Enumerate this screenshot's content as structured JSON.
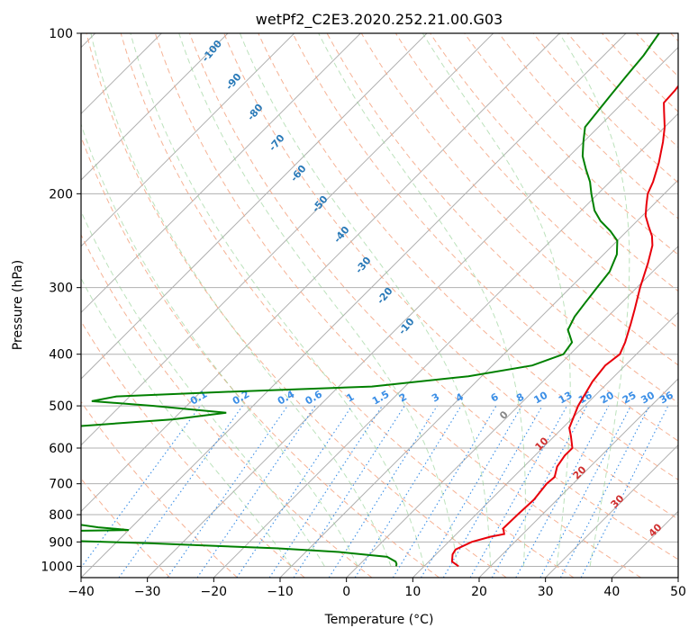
{
  "chart_data": {
    "type": "line",
    "title": "wetPf2_C2E3.2020.252.21.00.G03",
    "xlabel": "Temperature (°C)",
    "ylabel": "Pressure (hPa)",
    "xlim": [
      -40,
      50
    ],
    "ylim": [
      1050,
      100
    ],
    "y_scale": "log",
    "x_ticks": [
      -40,
      -30,
      -20,
      -10,
      0,
      10,
      20,
      30,
      40,
      50
    ],
    "y_ticks": [
      100,
      200,
      300,
      400,
      500,
      600,
      700,
      800,
      900,
      1000
    ],
    "grid": true,
    "skew_per_log_decade": 45,
    "theta_labels": [
      "-100",
      "-90",
      "-80",
      "-70",
      "-60",
      "-50",
      "-40",
      "-30",
      "-20",
      "-10"
    ],
    "mixing_ratio_labels": [
      "0.1",
      "0.2",
      "0.4",
      "0.6",
      "1",
      "1.5",
      "2",
      "3",
      "4",
      "6",
      "8",
      "10",
      "13",
      "16",
      "20",
      "25",
      "30",
      "36"
    ],
    "isotherm_labels": [
      "0",
      "10",
      "20",
      "30",
      "40"
    ],
    "series": [
      {
        "name": "Temperature",
        "color": "#e8000b",
        "points": [
          [
            1000,
            15.2
          ],
          [
            980,
            13.5
          ],
          [
            950,
            12.5
          ],
          [
            930,
            12.2
          ],
          [
            900,
            13.5
          ],
          [
            880,
            15.5
          ],
          [
            870,
            17.2
          ],
          [
            855,
            16.5
          ],
          [
            850,
            16.2
          ],
          [
            800,
            16.3
          ],
          [
            750,
            16.5
          ],
          [
            700,
            16.0
          ],
          [
            680,
            16.2
          ],
          [
            650,
            15.0
          ],
          [
            620,
            14.5
          ],
          [
            600,
            14.5
          ],
          [
            570,
            12.5
          ],
          [
            550,
            11.0
          ],
          [
            500,
            9.0
          ],
          [
            450,
            7.5
          ],
          [
            420,
            7.0
          ],
          [
            400,
            7.5
          ],
          [
            380,
            6.5
          ],
          [
            350,
            4.5
          ],
          [
            330,
            3.0
          ],
          [
            300,
            0.5
          ],
          [
            270,
            -2.0
          ],
          [
            250,
            -4.0
          ],
          [
            240,
            -5.5
          ],
          [
            230,
            -7.5
          ],
          [
            220,
            -9.5
          ],
          [
            210,
            -11.0
          ],
          [
            200,
            -12.5
          ],
          [
            190,
            -13.5
          ],
          [
            175,
            -15.5
          ],
          [
            160,
            -18.0
          ],
          [
            150,
            -20.0
          ],
          [
            140,
            -22.5
          ],
          [
            135,
            -23.8
          ],
          [
            128,
            -24.0
          ],
          [
            120,
            -24.5
          ],
          [
            110,
            -25.0
          ],
          [
            100,
            -26.0
          ]
        ]
      },
      {
        "name": "Dewpoint",
        "color": "#008000",
        "points": [
          [
            1000,
            5.8
          ],
          [
            990,
            5.5
          ],
          [
            980,
            5.0
          ],
          [
            960,
            3.0
          ],
          [
            940,
            -5.0
          ],
          [
            925,
            -15.0
          ],
          [
            915,
            -25.0
          ],
          [
            905,
            -35.0
          ],
          [
            895,
            -48.0
          ],
          [
            880,
            -60.0
          ],
          [
            870,
            -75.0
          ],
          [
            862,
            -58.0
          ],
          [
            855,
            -40.0
          ],
          [
            845,
            -45.0
          ],
          [
            830,
            -50.0
          ],
          [
            810,
            -55.0
          ],
          [
            790,
            -58.0
          ],
          [
            770,
            -62.0
          ],
          [
            750,
            -68.0
          ],
          [
            725,
            -78.0
          ],
          [
            700,
            -95.0
          ],
          [
            670,
            -95.0
          ],
          [
            640,
            -72.0
          ],
          [
            625,
            -65.0
          ],
          [
            610,
            -66.0
          ],
          [
            595,
            -85.0
          ],
          [
            575,
            -95.0
          ],
          [
            560,
            -88.0
          ],
          [
            548,
            -65.0
          ],
          [
            530,
            -50.0
          ],
          [
            515,
            -43.0
          ],
          [
            500,
            -55.0
          ],
          [
            490,
            -65.0
          ],
          [
            480,
            -62.0
          ],
          [
            470,
            -45.0
          ],
          [
            460,
            -25.0
          ],
          [
            440,
            -12.0
          ],
          [
            420,
            -4.0
          ],
          [
            400,
            -1.0
          ],
          [
            380,
            -1.5
          ],
          [
            360,
            -4.0
          ],
          [
            340,
            -5.0
          ],
          [
            320,
            -5.5
          ],
          [
            300,
            -6.0
          ],
          [
            280,
            -6.5
          ],
          [
            260,
            -8.0
          ],
          [
            245,
            -10.0
          ],
          [
            235,
            -12.5
          ],
          [
            225,
            -15.5
          ],
          [
            215,
            -18.0
          ],
          [
            200,
            -21.0
          ],
          [
            190,
            -23.0
          ],
          [
            180,
            -25.5
          ],
          [
            170,
            -28.0
          ],
          [
            160,
            -30.0
          ],
          [
            150,
            -32.0
          ],
          [
            140,
            -32.5
          ],
          [
            130,
            -33.0
          ],
          [
            120,
            -33.5
          ],
          [
            110,
            -34.0
          ],
          [
            100,
            -35.0
          ]
        ]
      }
    ]
  }
}
